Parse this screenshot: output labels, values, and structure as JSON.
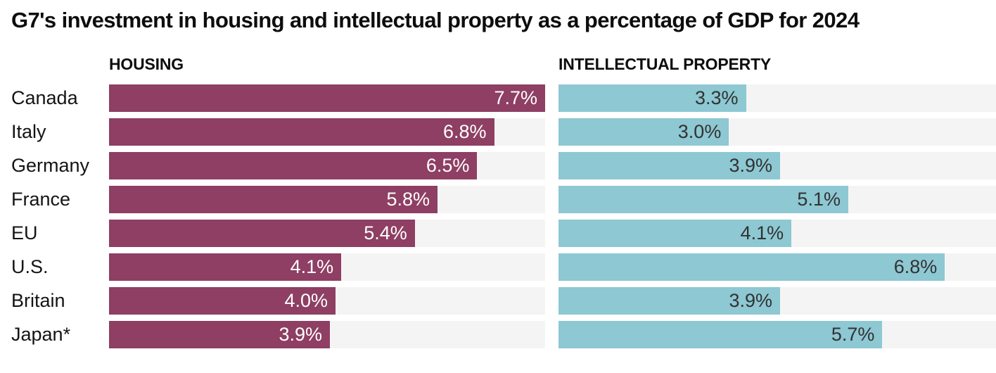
{
  "title": "G7's investment in housing and intellectual property as a percentage of GDP for 2024",
  "panels": {
    "housing_header": "HOUSING",
    "ip_header": "INTELLECTUAL PROPERTY"
  },
  "colors": {
    "housing_bar": "#8e3f63",
    "ip_bar": "#8dc8d3",
    "track": "#f4f4f4",
    "value_on_housing": "#ffffff",
    "value_on_ip": "#323232",
    "text": "#0d0d0d"
  },
  "chart_data": {
    "type": "bar",
    "orientation": "horizontal",
    "title": "G7's investment in housing and intellectual property as a percentage of GDP for 2024",
    "unit": "% of GDP",
    "xlim": [
      0,
      7.7
    ],
    "grid": false,
    "legend_position": "column-headers",
    "categories": [
      "Canada",
      "Italy",
      "Germany",
      "France",
      "EU",
      "U.S.",
      "Britain",
      "Japan*"
    ],
    "series": [
      {
        "name": "HOUSING",
        "values": [
          7.7,
          6.8,
          6.5,
          5.8,
          5.4,
          4.1,
          4.0,
          3.9
        ],
        "labels": [
          "7.7%",
          "6.8%",
          "6.5%",
          "5.8%",
          "5.4%",
          "4.1%",
          "4.0%",
          "3.9%"
        ]
      },
      {
        "name": "INTELLECTUAL PROPERTY",
        "values": [
          3.3,
          3.0,
          3.9,
          5.1,
          4.1,
          6.8,
          3.9,
          5.7
        ],
        "labels": [
          "3.3%",
          "3.0%",
          "3.9%",
          "5.1%",
          "4.1%",
          "6.8%",
          "3.9%",
          "5.7%"
        ]
      }
    ]
  }
}
